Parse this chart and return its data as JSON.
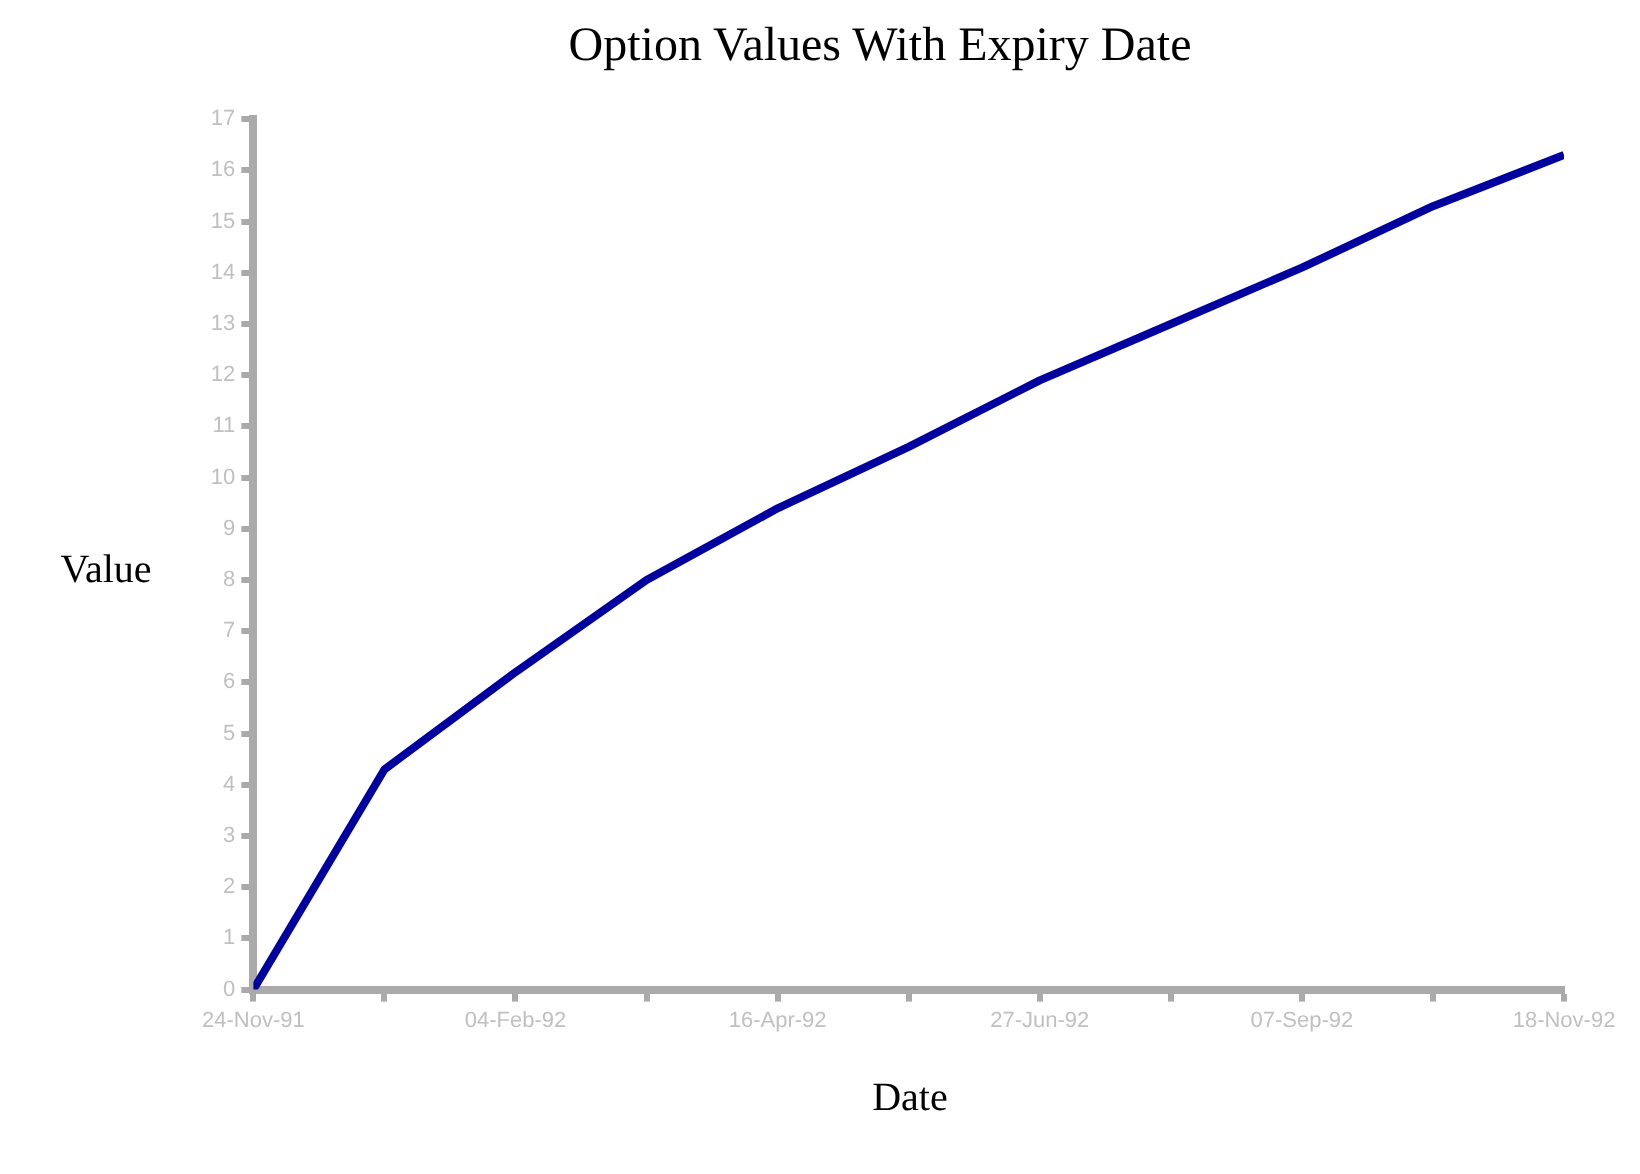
{
  "chart_data": {
    "type": "line",
    "title": "Option Values With Expiry Date",
    "xlabel": "Date",
    "ylabel": "Value",
    "x": [
      "1991-11-24",
      "1991-12-30",
      "1992-02-04",
      "1992-03-11",
      "1992-04-16",
      "1992-05-22",
      "1992-06-27",
      "1992-08-02",
      "1992-09-07",
      "1992-10-13",
      "1992-11-18"
    ],
    "series": [
      {
        "color": "#0000a0",
        "values": [
          0,
          4.3,
          6.2,
          8.0,
          9.4,
          10.6,
          11.9,
          13.0,
          14.1,
          15.3,
          16.3
        ]
      }
    ],
    "xlim": [
      "1991-11-24",
      "1992-11-18"
    ],
    "xticks": [
      {
        "value": "1991-11-24",
        "label": "24-Nov-91"
      },
      {
        "value": "1991-12-30",
        "label": null
      },
      {
        "value": "1992-02-04",
        "label": "04-Feb-92"
      },
      {
        "value": "1992-03-11",
        "label": null
      },
      {
        "value": "1992-04-16",
        "label": "16-Apr-92"
      },
      {
        "value": "1992-05-22",
        "label": null
      },
      {
        "value": "1992-06-27",
        "label": "27-Jun-92"
      },
      {
        "value": "1992-08-02",
        "label": null
      },
      {
        "value": "1992-09-07",
        "label": "07-Sep-92"
      },
      {
        "value": "1992-10-13",
        "label": null
      },
      {
        "value": "1992-11-18",
        "label": "18-Nov-92"
      }
    ],
    "ylim": [
      0,
      17
    ],
    "yticks": [
      0,
      1,
      2,
      3,
      4,
      5,
      6,
      7,
      8,
      9,
      10,
      11,
      12,
      13,
      14,
      15,
      16,
      17
    ],
    "grid": false,
    "legend": false,
    "marker": "none",
    "line_style": "solid"
  }
}
